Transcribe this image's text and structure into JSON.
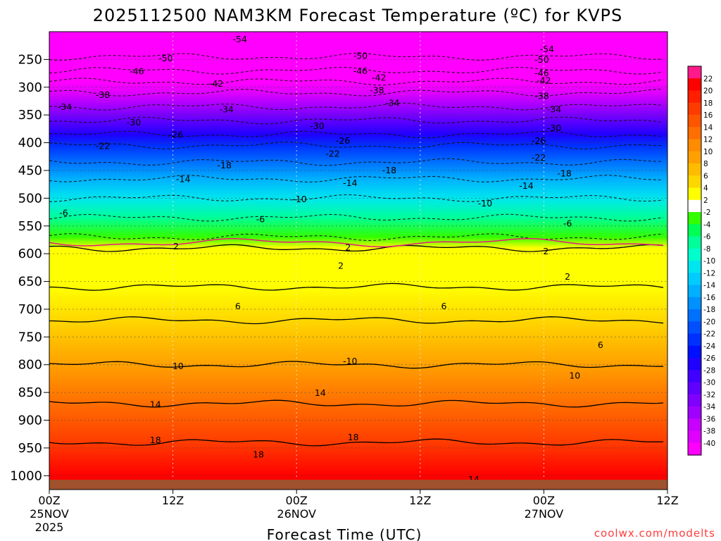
{
  "chart_data": {
    "type": "heatmap",
    "title": "2025112500 NAM3KM Forecast Temperature (ºC) for KVPS",
    "xlabel": "Forecast Time (UTC)",
    "ylabel": "",
    "credit": "coolwx.com/modelts",
    "x_ticks": [
      {
        "hour": 0,
        "label": "00Z",
        "sub1": "25NOV",
        "sub2": "2025"
      },
      {
        "hour": 12,
        "label": "12Z",
        "sub1": "",
        "sub2": ""
      },
      {
        "hour": 24,
        "label": "00Z",
        "sub1": "26NOV",
        "sub2": ""
      },
      {
        "hour": 36,
        "label": "12Z",
        "sub1": "",
        "sub2": ""
      },
      {
        "hour": 48,
        "label": "00Z",
        "sub1": "27NOV",
        "sub2": ""
      },
      {
        "hour": 60,
        "label": "12Z",
        "sub1": "",
        "sub2": ""
      }
    ],
    "x_range_hours": [
      0,
      60
    ],
    "y_range_hpa": [
      200,
      1025
    ],
    "y_ticks": [
      "250",
      "300",
      "350",
      "400",
      "450",
      "500",
      "550",
      "600",
      "650",
      "700",
      "750",
      "800",
      "850",
      "900",
      "950",
      "1000"
    ],
    "colorbar": {
      "labels": [
        "22",
        "20",
        "18",
        "16",
        "14",
        "12",
        "10",
        "8",
        "6",
        "4",
        "2",
        "-2",
        "-4",
        "-6",
        "-8",
        "-10",
        "-12",
        "-14",
        "-16",
        "-18",
        "-20",
        "-22",
        "-24",
        "-26",
        "-28",
        "-30",
        "-32",
        "-34",
        "-36",
        "-38",
        "-40"
      ],
      "colors": [
        "#ff1a8c",
        "#ff0000",
        "#ff1e00",
        "#ff3c00",
        "#ff5500",
        "#ff6e00",
        "#ff8c00",
        "#ffa000",
        "#ffbb00",
        "#ffd700",
        "#ffff00",
        "#ffffff",
        "#33ff00",
        "#00ff55",
        "#00ff99",
        "#00ffcc",
        "#00e6ee",
        "#00ccff",
        "#00b0ff",
        "#0090ff",
        "#0070ff",
        "#0050ff",
        "#0030ff",
        "#0010ff",
        "#2000ff",
        "#4000ff",
        "#6000ff",
        "#8000ff",
        "#a000ff",
        "#c800ff",
        "#e000ff",
        "#ff00ff"
      ]
    },
    "temperature_profile": [
      {
        "p": 200,
        "t": -58
      },
      {
        "p": 245,
        "t": -50
      },
      {
        "p": 270,
        "t": -46
      },
      {
        "p": 290,
        "t": -42
      },
      {
        "p": 310,
        "t": -38
      },
      {
        "p": 335,
        "t": -34
      },
      {
        "p": 360,
        "t": -30
      },
      {
        "p": 385,
        "t": -26
      },
      {
        "p": 405,
        "t": -22
      },
      {
        "p": 435,
        "t": -18
      },
      {
        "p": 465,
        "t": -14
      },
      {
        "p": 500,
        "t": -10
      },
      {
        "p": 535,
        "t": -6
      },
      {
        "p": 570,
        "t": -2
      },
      {
        "p": 590,
        "t": 2
      },
      {
        "p": 660,
        "t": 4
      },
      {
        "p": 720,
        "t": 6
      },
      {
        "p": 800,
        "t": 10
      },
      {
        "p": 870,
        "t": 14
      },
      {
        "p": 940,
        "t": 18
      },
      {
        "p": 1000,
        "t": 21
      }
    ],
    "contour_labels": [
      {
        "text": "-54",
        "h": 18.5,
        "p": 214
      },
      {
        "text": "-54",
        "h": 48.3,
        "p": 232
      },
      {
        "text": "-50",
        "h": 11.3,
        "p": 248
      },
      {
        "text": "-50",
        "h": 30.2,
        "p": 244
      },
      {
        "text": "-50",
        "h": 47.8,
        "p": 251
      },
      {
        "text": "-46",
        "h": 8.5,
        "p": 272
      },
      {
        "text": "-46",
        "h": 30.2,
        "p": 271
      },
      {
        "text": "-46",
        "h": 47.8,
        "p": 275
      },
      {
        "text": "-42",
        "h": 16.2,
        "p": 294
      },
      {
        "text": "-42",
        "h": 32.0,
        "p": 283
      },
      {
        "text": "-42",
        "h": 48.0,
        "p": 288
      },
      {
        "text": "-38",
        "h": 5.2,
        "p": 314
      },
      {
        "text": "-38",
        "h": 31.8,
        "p": 306
      },
      {
        "text": "-38",
        "h": 47.8,
        "p": 316
      },
      {
        "text": "-34",
        "h": 1.5,
        "p": 336
      },
      {
        "text": "-34",
        "h": 17.2,
        "p": 340
      },
      {
        "text": "-34",
        "h": 33.3,
        "p": 329
      },
      {
        "text": "-34",
        "h": 49.0,
        "p": 340
      },
      {
        "text": "-30",
        "h": 8.2,
        "p": 364
      },
      {
        "text": "-30",
        "h": 26.0,
        "p": 370
      },
      {
        "text": "-30",
        "h": 49.0,
        "p": 374
      },
      {
        "text": "-26",
        "h": 12.3,
        "p": 386
      },
      {
        "text": "-26",
        "h": 28.5,
        "p": 397
      },
      {
        "text": "-26",
        "h": 47.5,
        "p": 397
      },
      {
        "text": "-22",
        "h": 5.2,
        "p": 406
      },
      {
        "text": "-22",
        "h": 27.5,
        "p": 420
      },
      {
        "text": "-22",
        "h": 47.5,
        "p": 427
      },
      {
        "text": "-18",
        "h": 17.0,
        "p": 441
      },
      {
        "text": "-18",
        "h": 33.0,
        "p": 450
      },
      {
        "text": "-18",
        "h": 50.0,
        "p": 456
      },
      {
        "text": "-14",
        "h": 13.0,
        "p": 466
      },
      {
        "text": "-14",
        "h": 29.2,
        "p": 473
      },
      {
        "text": "-14",
        "h": 46.3,
        "p": 478
      },
      {
        "text": "-10",
        "h": 24.3,
        "p": 502
      },
      {
        "text": "-10",
        "h": 42.3,
        "p": 510
      },
      {
        "text": "-6",
        "h": 1.4,
        "p": 527
      },
      {
        "text": "-6",
        "h": 20.5,
        "p": 538
      },
      {
        "text": "-6",
        "h": 50.3,
        "p": 546
      },
      {
        "text": "2",
        "h": 12.3,
        "p": 587
      },
      {
        "text": "2",
        "h": 29.0,
        "p": 589
      },
      {
        "text": "2",
        "h": 48.2,
        "p": 596
      },
      {
        "text": "2",
        "h": 28.3,
        "p": 622
      },
      {
        "text": "2",
        "h": 50.3,
        "p": 642
      },
      {
        "text": "6",
        "h": 18.3,
        "p": 695
      },
      {
        "text": "6",
        "h": 38.3,
        "p": 695
      },
      {
        "text": "6",
        "h": 53.5,
        "p": 765
      },
      {
        "text": "-10",
        "h": 29.2,
        "p": 794
      },
      {
        "text": "10",
        "h": 12.5,
        "p": 803
      },
      {
        "text": "10",
        "h": 51.0,
        "p": 820
      },
      {
        "text": "14",
        "h": 10.3,
        "p": 872
      },
      {
        "text": "14",
        "h": 26.3,
        "p": 851
      },
      {
        "text": "18",
        "h": 10.3,
        "p": 936
      },
      {
        "text": "18",
        "h": 20.3,
        "p": 962
      },
      {
        "text": "18",
        "h": 29.5,
        "p": 931
      },
      {
        "text": "14",
        "h": 41.2,
        "p": 1007
      }
    ]
  }
}
